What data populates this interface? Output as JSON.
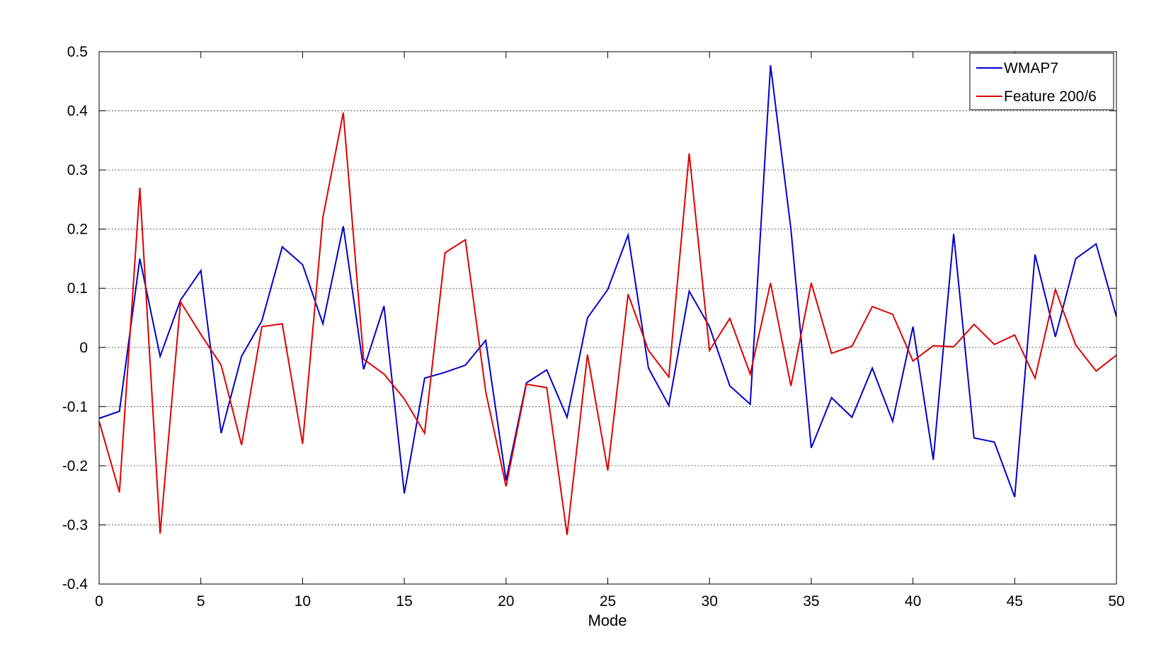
{
  "chart_data": {
    "type": "line",
    "title": "",
    "xlabel": "Mode",
    "ylabel": "",
    "xlim": [
      0,
      50
    ],
    "ylim": [
      -0.4,
      0.5
    ],
    "xticks": [
      0,
      5,
      10,
      15,
      20,
      25,
      30,
      35,
      40,
      45,
      50
    ],
    "yticks": [
      -0.4,
      -0.3,
      -0.2,
      -0.1,
      0,
      0.1,
      0.2,
      0.3,
      0.4,
      0.5
    ],
    "xtick_labels": [
      "0",
      "5",
      "10",
      "15",
      "20",
      "25",
      "30",
      "35",
      "40",
      "45",
      "50"
    ],
    "ytick_labels": [
      "-0.4",
      "-0.3",
      "-0.2",
      "-0.1",
      "0",
      "0.1",
      "0.2",
      "0.3",
      "0.4",
      "0.5"
    ],
    "grid": "horizontal dotted",
    "legend_position": "top-right",
    "x": [
      0,
      1,
      2,
      3,
      4,
      5,
      6,
      7,
      8,
      9,
      10,
      11,
      12,
      13,
      14,
      15,
      16,
      17,
      18,
      19,
      20,
      21,
      22,
      23,
      24,
      25,
      26,
      27,
      28,
      29,
      30,
      31,
      32,
      33,
      34,
      35,
      36,
      37,
      38,
      39,
      40,
      41,
      42,
      43,
      44,
      45,
      46,
      47,
      48,
      49,
      50
    ],
    "series": [
      {
        "name": "WMAP7",
        "color": "#0000cc",
        "values": [
          -0.12,
          -0.108,
          0.15,
          -0.015,
          0.08,
          0.13,
          -0.145,
          -0.015,
          0.045,
          0.17,
          0.14,
          0.04,
          0.205,
          -0.037,
          0.07,
          -0.247,
          -0.052,
          -0.042,
          -0.03,
          0.012,
          -0.225,
          -0.06,
          -0.038,
          -0.118,
          0.05,
          0.098,
          0.19,
          -0.035,
          -0.098,
          0.095,
          0.035,
          -0.065,
          -0.096,
          0.477,
          0.2,
          -0.17,
          -0.085,
          -0.118,
          -0.035,
          -0.125,
          0.035,
          -0.19,
          0.192,
          -0.153,
          -0.16,
          -0.253,
          0.157,
          0.018,
          0.15,
          0.175,
          0.052
        ]
      },
      {
        "name": "Feature 200/6",
        "color": "#dd0000",
        "values": [
          -0.125,
          -0.245,
          0.27,
          -0.315,
          0.077,
          0.022,
          -0.03,
          -0.165,
          0.035,
          0.04,
          -0.163,
          0.22,
          0.397,
          -0.02,
          -0.045,
          -0.087,
          -0.145,
          0.16,
          0.182,
          -0.075,
          -0.235,
          -0.062,
          -0.068,
          -0.317,
          -0.012,
          -0.208,
          0.09,
          -0.005,
          -0.05,
          0.328,
          -0.005,
          0.049,
          -0.045,
          0.109,
          -0.065,
          0.109,
          -0.01,
          0.002,
          0.069,
          0.056,
          -0.023,
          0.003,
          0.001,
          0.039,
          0.005,
          0.021,
          -0.052,
          0.098,
          0.004,
          -0.04,
          -0.013
        ]
      }
    ]
  }
}
